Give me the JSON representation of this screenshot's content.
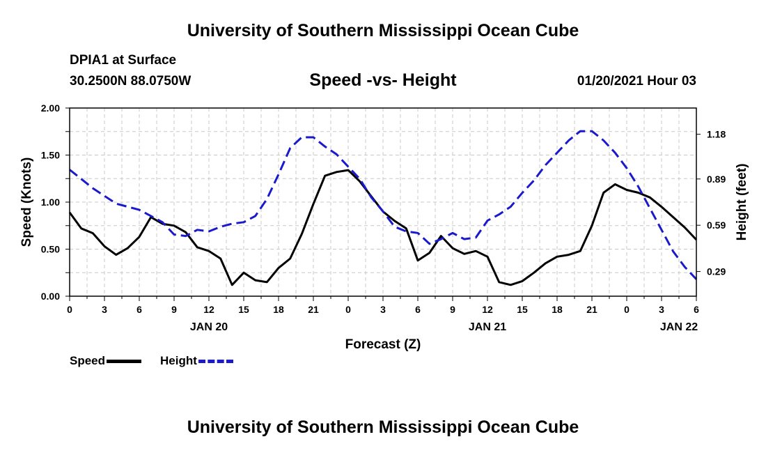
{
  "header": {
    "top_title": "University of Southern Mississippi Ocean Cube",
    "station": "DPIA1 at Surface",
    "coords": "30.2500N 88.0750W",
    "chart_title": "Speed -vs- Height",
    "run_time": "01/20/2021 Hour 03",
    "bottom_title": "University of Southern Mississippi Ocean Cube"
  },
  "legend": {
    "speed_label": "Speed",
    "height_label": "Height"
  },
  "colors": {
    "speed": "#000000",
    "height": "#1a1acc",
    "grid": "#c8c8c8"
  },
  "chart_data": {
    "type": "line",
    "title": "Speed -vs- Height",
    "xlabel": "Forecast (Z)",
    "ylabel": "Speed (Knots)",
    "y2label": "Height (feet)",
    "xlim": [
      0,
      54
    ],
    "ylim": [
      0,
      2.0
    ],
    "y2lim": [
      0.13,
      1.35
    ],
    "grid": true,
    "x_ticks": [
      {
        "x": 0,
        "label": "0"
      },
      {
        "x": 3,
        "label": "3"
      },
      {
        "x": 6,
        "label": "6"
      },
      {
        "x": 9,
        "label": "9"
      },
      {
        "x": 12,
        "label": "12"
      },
      {
        "x": 15,
        "label": "15"
      },
      {
        "x": 18,
        "label": "18"
      },
      {
        "x": 21,
        "label": "21"
      },
      {
        "x": 24,
        "label": "0"
      },
      {
        "x": 27,
        "label": "3"
      },
      {
        "x": 30,
        "label": "6"
      },
      {
        "x": 33,
        "label": "9"
      },
      {
        "x": 36,
        "label": "12"
      },
      {
        "x": 39,
        "label": "15"
      },
      {
        "x": 42,
        "label": "18"
      },
      {
        "x": 45,
        "label": "21"
      },
      {
        "x": 48,
        "label": "0"
      },
      {
        "x": 51,
        "label": "3"
      },
      {
        "x": 54,
        "label": "6"
      }
    ],
    "date_labels": [
      {
        "x": 12,
        "label": "JAN 20"
      },
      {
        "x": 36,
        "label": "JAN 21"
      },
      {
        "x": 52.5,
        "label": "JAN 22"
      }
    ],
    "y_ticks": [
      {
        "y": 0.0,
        "label": "0.00"
      },
      {
        "y": 0.5,
        "label": "0.50"
      },
      {
        "y": 1.0,
        "label": "1.00"
      },
      {
        "y": 1.5,
        "label": "1.50"
      },
      {
        "y": 2.0,
        "label": "2.00"
      }
    ],
    "y2_ticks": [
      {
        "y": 0.29,
        "label": "0.29"
      },
      {
        "y": 0.59,
        "label": "0.59"
      },
      {
        "y": 0.89,
        "label": "0.89"
      },
      {
        "y": 1.18,
        "label": "1.18"
      }
    ],
    "series": [
      {
        "name": "Speed",
        "axis": "left",
        "x": [
          0,
          1,
          2,
          3,
          4,
          5,
          6,
          7,
          8,
          9,
          10,
          11,
          12,
          13,
          14,
          15,
          16,
          17,
          18,
          19,
          20,
          21,
          22,
          23,
          24,
          25,
          26,
          27,
          28,
          29,
          30,
          31,
          32,
          33,
          34,
          35,
          36,
          37,
          38,
          39,
          40,
          41,
          42,
          43,
          44,
          45,
          46,
          47,
          48,
          49,
          50,
          51,
          52,
          53,
          54
        ],
        "values": [
          0.89,
          0.72,
          0.67,
          0.53,
          0.44,
          0.51,
          0.63,
          0.84,
          0.77,
          0.75,
          0.68,
          0.52,
          0.48,
          0.4,
          0.12,
          0.25,
          0.17,
          0.15,
          0.3,
          0.4,
          0.66,
          0.98,
          1.28,
          1.32,
          1.34,
          1.22,
          1.06,
          0.9,
          0.8,
          0.72,
          0.38,
          0.46,
          0.64,
          0.51,
          0.45,
          0.48,
          0.42,
          0.15,
          0.12,
          0.16,
          0.25,
          0.35,
          0.42,
          0.44,
          0.48,
          0.75,
          1.1,
          1.19,
          1.13,
          1.1,
          1.05,
          0.95,
          0.84,
          0.73,
          0.6
        ]
      },
      {
        "name": "Height",
        "axis": "right",
        "x": [
          0,
          1,
          2,
          3,
          4,
          5,
          6,
          7,
          8,
          9,
          10,
          11,
          12,
          13,
          14,
          15,
          16,
          17,
          18,
          19,
          20,
          21,
          22,
          23,
          24,
          25,
          26,
          27,
          28,
          29,
          30,
          31,
          32,
          33,
          34,
          35,
          36,
          37,
          38,
          39,
          40,
          41,
          42,
          43,
          44,
          45,
          46,
          47,
          48,
          49,
          50,
          51,
          52,
          53,
          54
        ],
        "values": [
          0.95,
          0.89,
          0.83,
          0.78,
          0.73,
          0.71,
          0.69,
          0.65,
          0.61,
          0.53,
          0.52,
          0.56,
          0.55,
          0.58,
          0.6,
          0.61,
          0.65,
          0.76,
          0.92,
          1.09,
          1.16,
          1.16,
          1.1,
          1.05,
          0.97,
          0.89,
          0.77,
          0.68,
          0.58,
          0.55,
          0.54,
          0.47,
          0.5,
          0.54,
          0.5,
          0.51,
          0.62,
          0.66,
          0.71,
          0.8,
          0.88,
          0.98,
          1.06,
          1.14,
          1.2,
          1.2,
          1.14,
          1.06,
          0.96,
          0.84,
          0.7,
          0.56,
          0.42,
          0.32,
          0.24
        ]
      }
    ]
  }
}
